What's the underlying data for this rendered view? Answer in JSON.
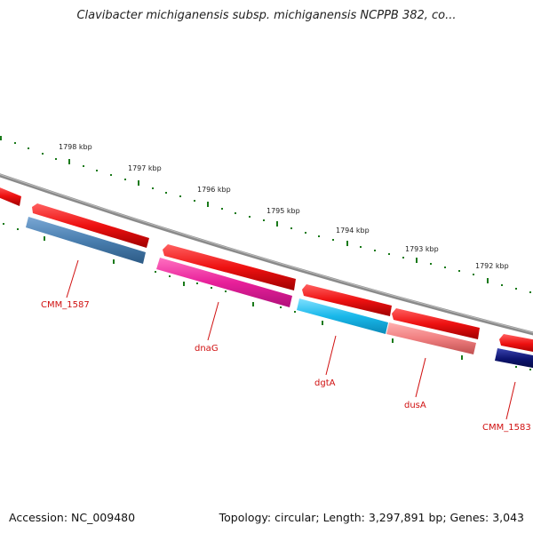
{
  "header": {
    "title": "Clavibacter michiganensis subsp. michiganensis NCPPB 382, co..."
  },
  "footer": {
    "accession": "Accession: NC_009480",
    "summary": "Topology: circular; Length: 3,297,891 bp; Genes: 3,043"
  },
  "map": {
    "tick_labels": [
      "1798 kbp",
      "1797 kbp",
      "1796 kbp",
      "1795 kbp",
      "1794 kbp",
      "1793 kbp",
      "1792 kbp"
    ],
    "genes": [
      {
        "label": "CMM_1587",
        "color": "#4a7fb0"
      },
      {
        "label": "dnaG",
        "color": "#e8209a"
      },
      {
        "label": "dgtA",
        "color": "#19b8ea"
      },
      {
        "label": "dusA",
        "color": "#f07f80"
      },
      {
        "label": "CMM_1583",
        "color": "#0d1470"
      }
    ],
    "cds_color": "#ee1111",
    "backbone_color": "#888888",
    "tick_color": "#1a7a1a",
    "label_color": "#d01010"
  }
}
